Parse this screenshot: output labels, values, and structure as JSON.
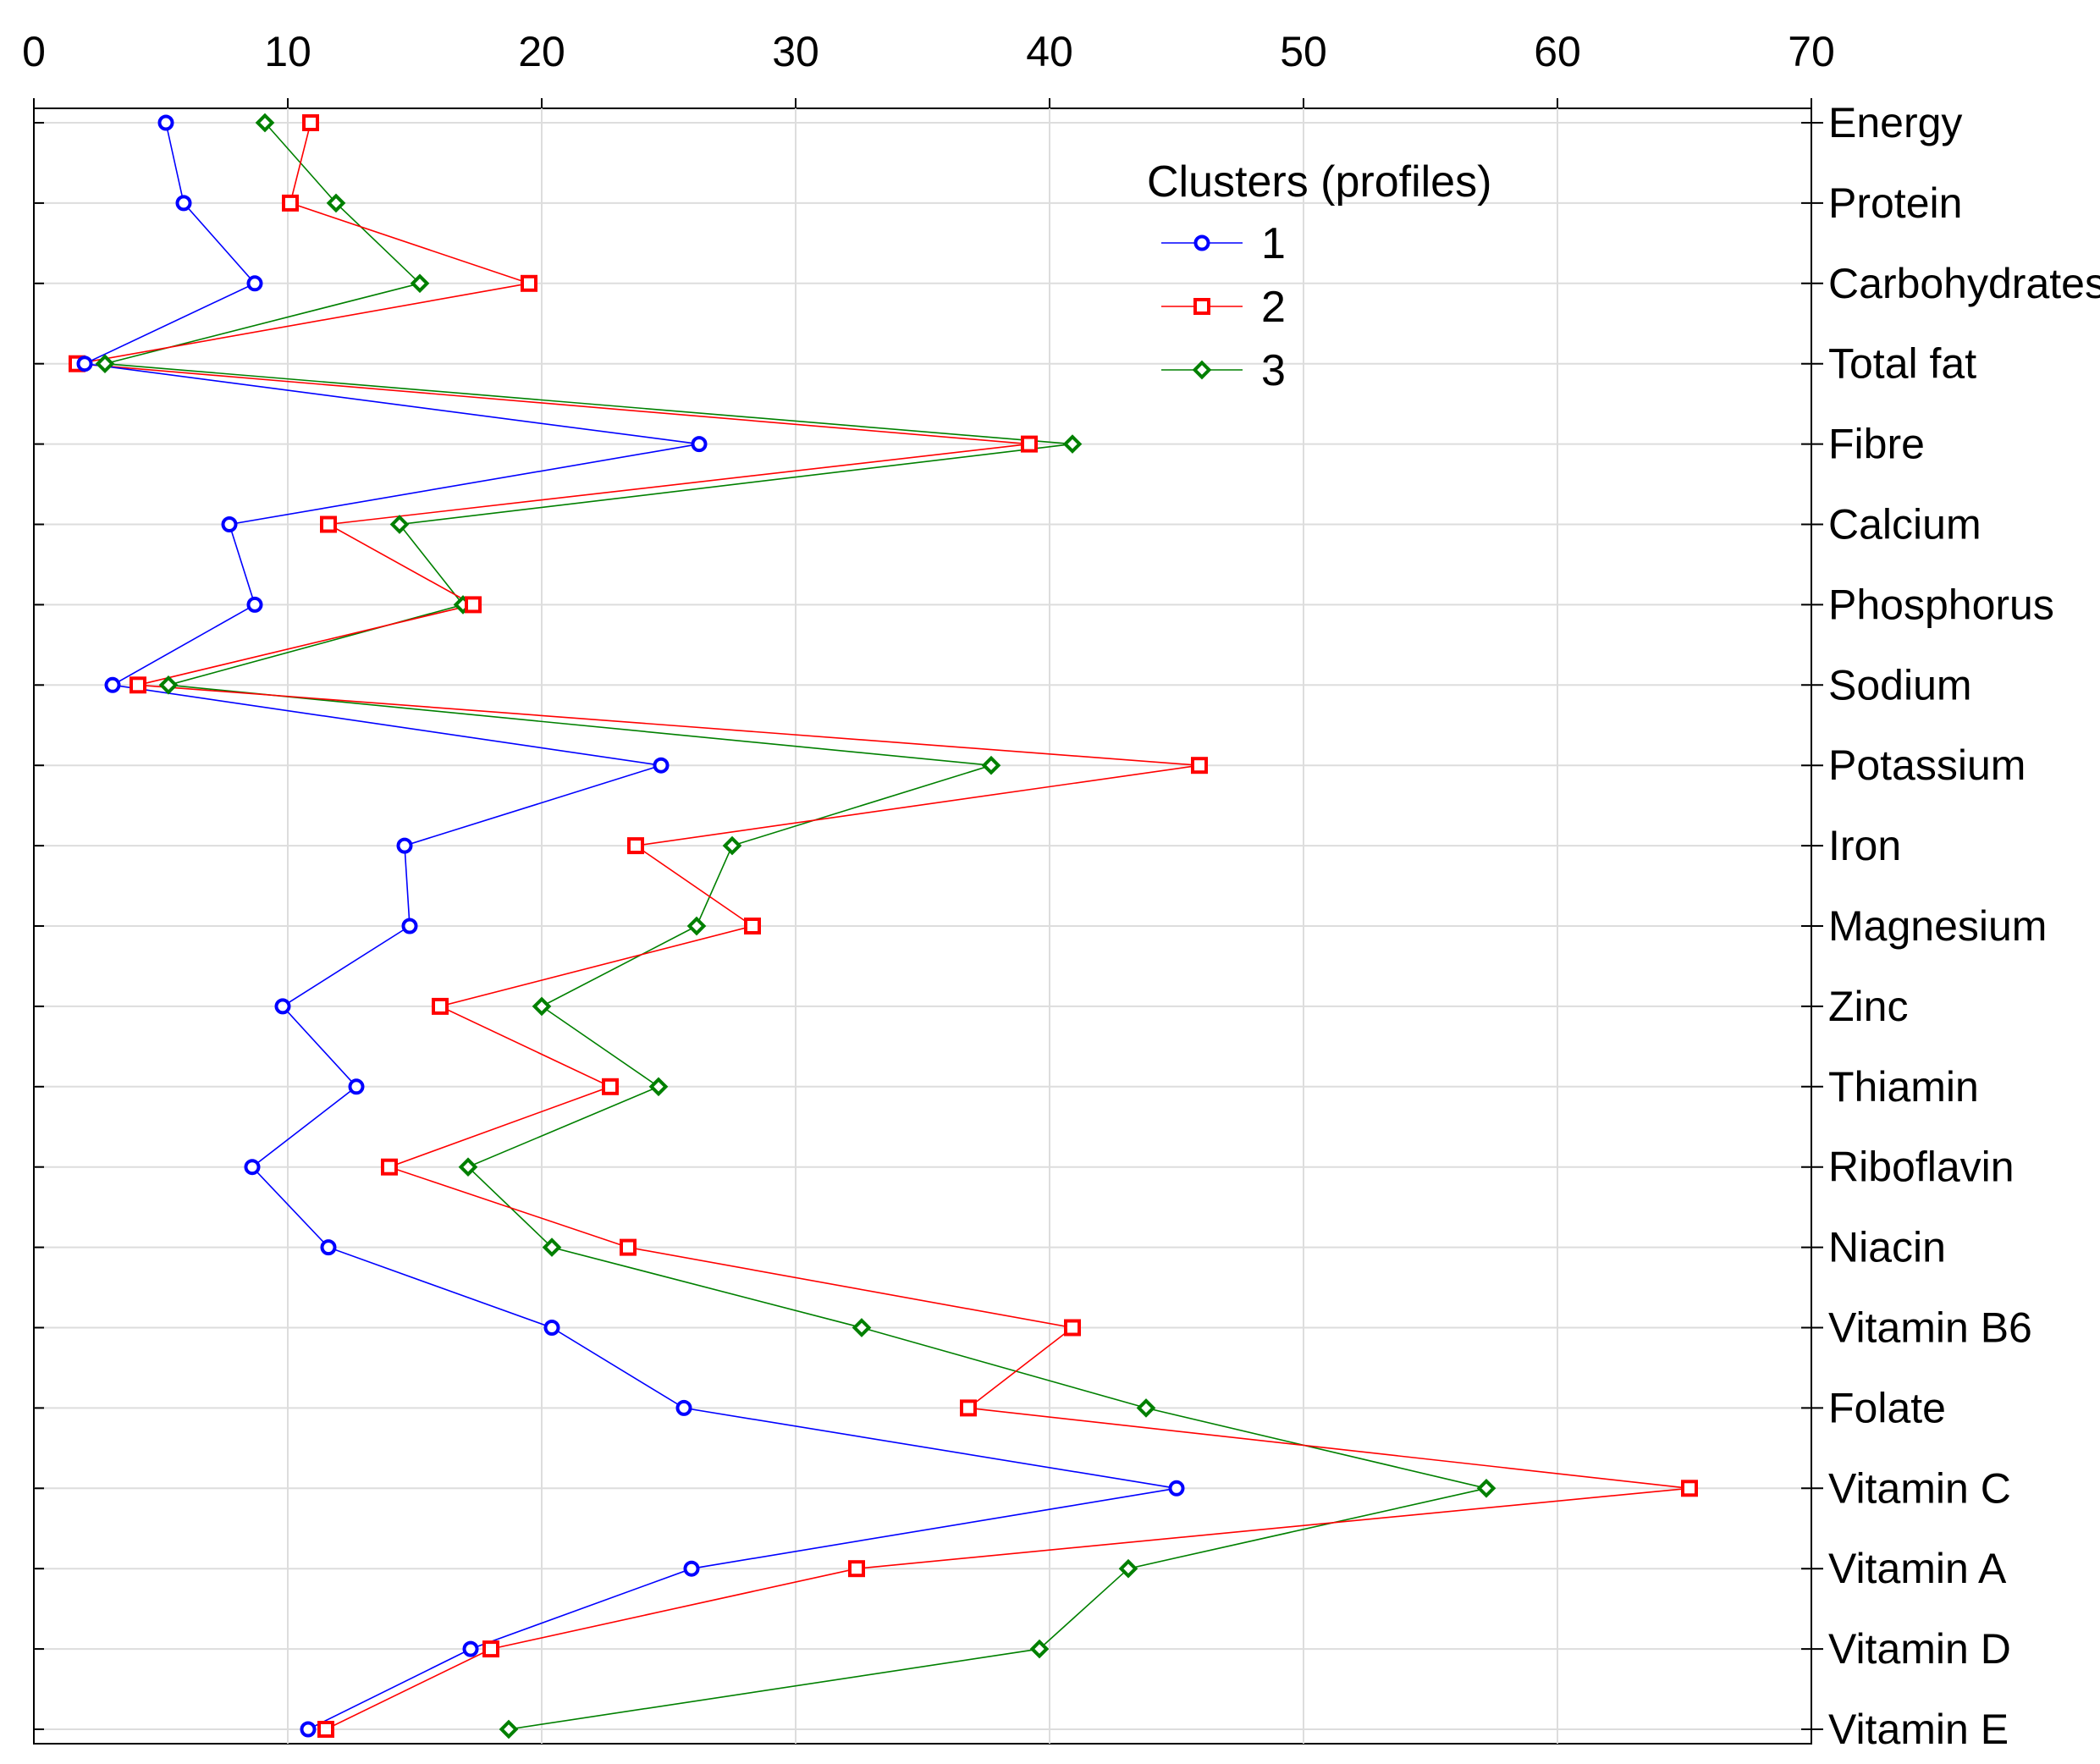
{
  "chart_data": {
    "type": "line",
    "orientation": "horizontal-profile",
    "title": "",
    "xlabel": "",
    "ylabel": "",
    "xlim": [
      0,
      70
    ],
    "x_ticks": [
      0,
      10,
      20,
      30,
      40,
      50,
      60,
      70
    ],
    "x_tick_labels": [
      "0",
      "10",
      "20",
      "30",
      "40",
      "50",
      "60",
      "70"
    ],
    "grid": true,
    "categories": [
      "Energy",
      "Protein",
      "Carbohydrates",
      "Total fat",
      "Fibre",
      "Calcium",
      "Phosphorus",
      "Sodium",
      "Potassium",
      "Iron",
      "Magnesium",
      "Zinc",
      "Thiamin",
      "Riboflavin",
      "Niacin",
      "Vitamin B6",
      "Folate",
      "Vitamin C",
      "Vitamin A",
      "Vitamin D",
      "Vitamin E"
    ],
    "legend": {
      "title": "Clusters (profiles)",
      "position": "top-right"
    },
    "series": [
      {
        "name": "1",
        "color": "#0000ff",
        "marker": "circle",
        "values": [
          5.2,
          5.9,
          8.7,
          2.0,
          26.2,
          7.7,
          8.7,
          3.1,
          24.7,
          14.6,
          14.8,
          9.8,
          12.7,
          8.6,
          11.6,
          20.4,
          25.6,
          45.0,
          25.9,
          17.2,
          10.8
        ]
      },
      {
        "name": "2",
        "color": "#ff0000",
        "marker": "square",
        "values": [
          10.9,
          10.1,
          19.5,
          1.7,
          39.2,
          11.6,
          17.3,
          4.1,
          45.9,
          23.7,
          28.3,
          16.0,
          22.7,
          14.0,
          23.4,
          40.9,
          36.8,
          65.2,
          32.4,
          18.0,
          11.5
        ]
      },
      {
        "name": "3",
        "color": "#008000",
        "marker": "diamond",
        "values": [
          9.1,
          11.9,
          15.2,
          2.8,
          40.9,
          14.4,
          16.9,
          5.3,
          37.7,
          27.5,
          26.1,
          20.0,
          24.6,
          17.1,
          20.4,
          32.6,
          43.8,
          57.2,
          43.1,
          39.6,
          18.7
        ]
      }
    ]
  }
}
